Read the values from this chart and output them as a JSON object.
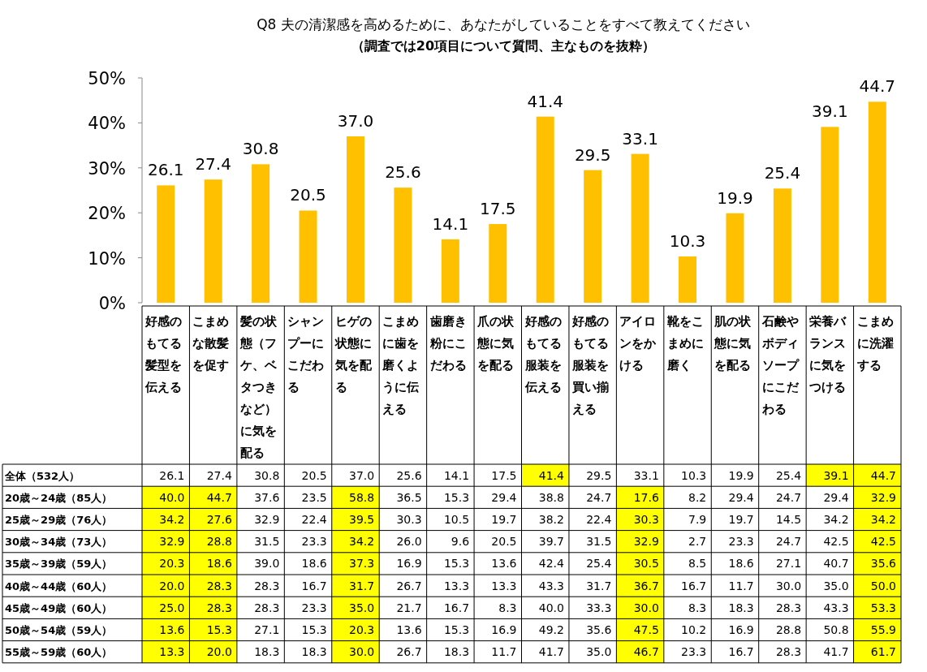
{
  "chart_data": [
    {
      "type": "bar",
      "title": "Q8 夫の清潔感を高めるために、あなたがしていることをすべて教えてください",
      "subtitle": "（調査では20項目について質問、主なものを抜粋）",
      "categories": [
        "好感のもてる髪型を伝える",
        "こまめな散髪を促す",
        "髪の状態（フケ、ベタつきなど）に気を配る",
        "シャンプーにこだわる",
        "ヒゲの状態に気を配る",
        "こまめに歯を磨くように伝える",
        "歯磨き粉にこだわる",
        "爪の状態に気を配る",
        "好感のもてる服装を伝える",
        "好感のもてる服装を買い揃える",
        "アイロンをかける",
        "靴をこまめに磨く",
        "肌の状態に気を配る",
        "石鹸やボディソープにこだわる",
        "栄養バランスに気をつける",
        "こまめに洗濯する"
      ],
      "values": [
        26.1,
        27.4,
        30.8,
        20.5,
        37.0,
        25.6,
        14.1,
        17.5,
        41.4,
        29.5,
        33.1,
        10.3,
        19.9,
        25.4,
        39.1,
        44.7
      ],
      "value_labels": [
        "26.1",
        "27.4",
        "30.8",
        "20.5",
        "37.0",
        "25.6",
        "14.1",
        "17.5",
        "41.4",
        "29.5",
        "33.1",
        "10.3",
        "19.9",
        "25.4",
        "39.1",
        "44.7"
      ],
      "color": "#ffc000",
      "tick_labels": "y",
      "ylim": [
        0,
        50
      ],
      "yticks": [
        {
          "value": 0,
          "label": "0%"
        },
        {
          "value": 10,
          "label": "10%"
        },
        {
          "value": 20,
          "label": "20%"
        },
        {
          "value": 30,
          "label": "30%"
        },
        {
          "value": 40,
          "label": "40%"
        },
        {
          "value": 50,
          "label": "50%"
        }
      ]
    },
    {
      "type": "heatmap",
      "categories": [
        "好感のもてる髪型を伝える",
        "こまめな散髪を促す",
        "髪の状態（フケ、ベタつきなど）に気を配る",
        "シャンプーにこだわる",
        "ヒゲの状態に気を配る",
        "こまめに歯を磨くように伝える",
        "歯磨き粉にこだわる",
        "爪の状態に気を配る",
        "好感のもてる服装を伝える",
        "好感のもてる服装を買い揃える",
        "アイロンをかける",
        "靴をこまめに磨く",
        "肌の状態に気を配る",
        "石鹸やボディソープにこだわる",
        "栄養バランスに気をつける",
        "こまめに洗濯する"
      ],
      "y_categories": [
        "全体（532人）",
        "20歳～24歳（85人）",
        "25歳～29歳（76人）",
        "30歳～34歳（73人）",
        "35歳～39歳（59人）",
        "40歳～44歳（60人）",
        "45歳～49歳（60人）",
        "50歳～54歳（59人）",
        "55歳～59歳（60人）"
      ],
      "cells": [
        [
          26.1,
          27.4,
          30.8,
          20.5,
          37.0,
          25.6,
          14.1,
          17.5,
          41.4,
          29.5,
          33.1,
          10.3,
          19.9,
          25.4,
          39.1,
          44.7
        ],
        [
          40.0,
          44.7,
          37.6,
          23.5,
          58.8,
          36.5,
          15.3,
          29.4,
          38.8,
          24.7,
          17.6,
          8.2,
          29.4,
          24.7,
          29.4,
          32.9
        ],
        [
          34.2,
          27.6,
          32.9,
          22.4,
          39.5,
          30.3,
          10.5,
          19.7,
          38.2,
          22.4,
          30.3,
          7.9,
          19.7,
          14.5,
          34.2,
          34.2
        ],
        [
          32.9,
          28.8,
          31.5,
          23.3,
          34.2,
          26.0,
          9.6,
          20.5,
          39.7,
          31.5,
          32.9,
          2.7,
          23.3,
          24.7,
          42.5,
          42.5
        ],
        [
          20.3,
          18.6,
          39.0,
          18.6,
          37.3,
          16.9,
          15.3,
          13.6,
          42.4,
          25.4,
          30.5,
          8.5,
          18.6,
          27.1,
          40.7,
          35.6
        ],
        [
          20.0,
          28.3,
          28.3,
          16.7,
          31.7,
          26.7,
          13.3,
          13.3,
          43.3,
          31.7,
          36.7,
          16.7,
          11.7,
          30.0,
          35.0,
          50.0
        ],
        [
          25.0,
          28.3,
          28.3,
          23.3,
          35.0,
          21.7,
          16.7,
          8.3,
          40.0,
          33.3,
          30.0,
          8.3,
          18.3,
          28.3,
          43.3,
          53.3
        ],
        [
          13.6,
          15.3,
          27.1,
          15.3,
          20.3,
          13.6,
          15.3,
          16.9,
          49.2,
          35.6,
          47.5,
          10.2,
          16.9,
          28.8,
          50.8,
          55.9
        ],
        [
          13.3,
          20.0,
          18.3,
          18.3,
          30.0,
          26.7,
          18.3,
          11.7,
          41.7,
          35.0,
          46.7,
          23.3,
          16.7,
          28.3,
          41.7,
          61.7
        ]
      ],
      "cell_labels": [
        [
          "26.1",
          "27.4",
          "30.8",
          "20.5",
          "37.0",
          "25.6",
          "14.1",
          "17.5",
          "41.4",
          "29.5",
          "33.1",
          "10.3",
          "19.9",
          "25.4",
          "39.1",
          "44.7"
        ],
        [
          "40.0",
          "44.7",
          "37.6",
          "23.5",
          "58.8",
          "36.5",
          "15.3",
          "29.4",
          "38.8",
          "24.7",
          "17.6",
          "8.2",
          "29.4",
          "24.7",
          "29.4",
          "32.9"
        ],
        [
          "34.2",
          "27.6",
          "32.9",
          "22.4",
          "39.5",
          "30.3",
          "10.5",
          "19.7",
          "38.2",
          "22.4",
          "30.3",
          "7.9",
          "19.7",
          "14.5",
          "34.2",
          "34.2"
        ],
        [
          "32.9",
          "28.8",
          "31.5",
          "23.3",
          "34.2",
          "26.0",
          "9.6",
          "20.5",
          "39.7",
          "31.5",
          "32.9",
          "2.7",
          "23.3",
          "24.7",
          "42.5",
          "42.5"
        ],
        [
          "20.3",
          "18.6",
          "39.0",
          "18.6",
          "37.3",
          "16.9",
          "15.3",
          "13.6",
          "42.4",
          "25.4",
          "30.5",
          "8.5",
          "18.6",
          "27.1",
          "40.7",
          "35.6"
        ],
        [
          "20.0",
          "28.3",
          "28.3",
          "16.7",
          "31.7",
          "26.7",
          "13.3",
          "13.3",
          "43.3",
          "31.7",
          "36.7",
          "16.7",
          "11.7",
          "30.0",
          "35.0",
          "50.0"
        ],
        [
          "25.0",
          "28.3",
          "28.3",
          "23.3",
          "35.0",
          "21.7",
          "16.7",
          "8.3",
          "40.0",
          "33.3",
          "30.0",
          "8.3",
          "18.3",
          "28.3",
          "43.3",
          "53.3"
        ],
        [
          "13.6",
          "15.3",
          "27.1",
          "15.3",
          "20.3",
          "13.6",
          "15.3",
          "16.9",
          "49.2",
          "35.6",
          "47.5",
          "10.2",
          "16.9",
          "28.8",
          "50.8",
          "55.9"
        ],
        [
          "13.3",
          "20.0",
          "18.3",
          "18.3",
          "30.0",
          "26.7",
          "18.3",
          "11.7",
          "41.7",
          "35.0",
          "46.7",
          "23.3",
          "16.7",
          "28.3",
          "41.7",
          "61.7"
        ]
      ],
      "colors": [
        [
          null,
          null,
          null,
          null,
          null,
          null,
          null,
          null,
          "#ffff00",
          null,
          null,
          null,
          null,
          null,
          "#ffff00",
          "#ffff00"
        ],
        [
          "#ffff00",
          "#ffff00",
          null,
          null,
          "#ffff00",
          null,
          null,
          null,
          null,
          null,
          "#ffff00",
          null,
          null,
          null,
          null,
          "#ffff00"
        ],
        [
          "#ffff00",
          "#ffff00",
          null,
          null,
          "#ffff00",
          null,
          null,
          null,
          null,
          null,
          "#ffff00",
          null,
          null,
          null,
          null,
          "#ffff00"
        ],
        [
          "#ffff00",
          "#ffff00",
          null,
          null,
          "#ffff00",
          null,
          null,
          null,
          null,
          null,
          "#ffff00",
          null,
          null,
          null,
          null,
          "#ffff00"
        ],
        [
          "#ffff00",
          "#ffff00",
          null,
          null,
          "#ffff00",
          null,
          null,
          null,
          null,
          null,
          "#ffff00",
          null,
          null,
          null,
          null,
          "#ffff00"
        ],
        [
          "#ffff00",
          "#ffff00",
          null,
          null,
          "#ffff00",
          null,
          null,
          null,
          null,
          null,
          "#ffff00",
          null,
          null,
          null,
          null,
          "#ffff00"
        ],
        [
          "#ffff00",
          "#ffff00",
          null,
          null,
          "#ffff00",
          null,
          null,
          null,
          null,
          null,
          "#ffff00",
          null,
          null,
          null,
          null,
          "#ffff00"
        ],
        [
          "#ffff00",
          "#ffff00",
          null,
          null,
          "#ffff00",
          null,
          null,
          null,
          null,
          null,
          "#ffff00",
          null,
          null,
          null,
          null,
          "#ffff00"
        ],
        [
          "#ffff00",
          "#ffff00",
          null,
          null,
          "#ffff00",
          null,
          null,
          null,
          null,
          null,
          "#ffff00",
          null,
          null,
          null,
          null,
          "#ffff00"
        ]
      ]
    }
  ]
}
